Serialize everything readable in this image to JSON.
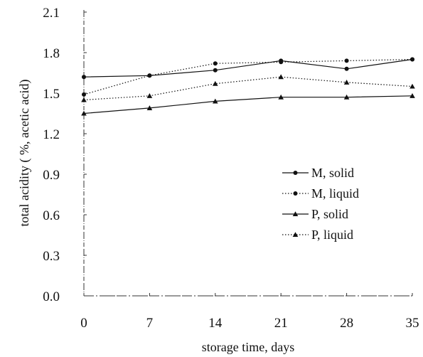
{
  "chart_data": {
    "type": "line",
    "xlabel": "storage time, days",
    "ylabel": "total acidity ( %, acetic acid)",
    "x": [
      0,
      7,
      14,
      21,
      28,
      35
    ],
    "x_ticks": [
      "0",
      "7",
      "14",
      "21",
      "28",
      "35"
    ],
    "xlim": [
      0,
      35
    ],
    "y_ticks": [
      "0.0",
      "0.3",
      "0.6",
      "0.9",
      "1.2",
      "1.5",
      "1.8",
      "2.1"
    ],
    "ylim": [
      0,
      2.1
    ],
    "grid": false,
    "legend_position": "right",
    "series": [
      {
        "name": "M, solid",
        "line": "solid",
        "marker": "circle",
        "values": [
          1.62,
          1.63,
          1.67,
          1.74,
          1.68,
          1.75
        ]
      },
      {
        "name": "M, liquid",
        "line": "dotted",
        "marker": "circle",
        "values": [
          1.49,
          1.63,
          1.72,
          1.73,
          1.74,
          1.75
        ]
      },
      {
        "name": "P, solid",
        "line": "solid",
        "marker": "triangle",
        "values": [
          1.35,
          1.39,
          1.44,
          1.47,
          1.47,
          1.48
        ]
      },
      {
        "name": "P, liquid",
        "line": "dotted",
        "marker": "triangle",
        "values": [
          1.45,
          1.48,
          1.57,
          1.62,
          1.58,
          1.55
        ]
      }
    ]
  }
}
